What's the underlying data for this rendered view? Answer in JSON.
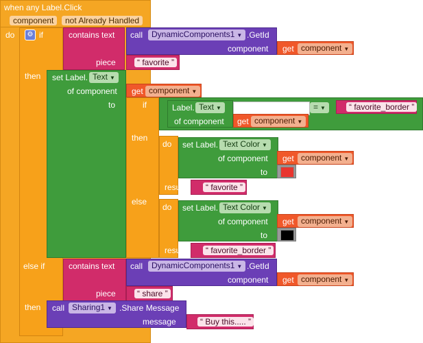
{
  "event": {
    "title": "when any Label.Click",
    "param1": "component",
    "param2": "not Already Handled",
    "do_label": "do"
  },
  "if_block": {
    "if_label": "if",
    "then_label": "then",
    "else_if_label": "else if",
    "then2_label": "then"
  },
  "contains1": {
    "label": "contains text",
    "piece_label": "piece",
    "piece_value": "favorite"
  },
  "call1": {
    "call_label": "call",
    "component": "DynamicComponents1",
    "method": ".GetId",
    "arg_label": "component",
    "get_label": "get",
    "get_value": "component"
  },
  "set_text": {
    "label": "set Label.",
    "prop": "Text",
    "of_component": "of component",
    "to_label": "to",
    "get_label": "get",
    "get_value": "component"
  },
  "inner_if": {
    "if_label": "if",
    "then_label": "then",
    "else_label": "else",
    "do_label": "do",
    "result_label": "result"
  },
  "label_text": {
    "label": "Label.",
    "prop": "Text",
    "of_component": "of component",
    "get_label": "get",
    "get_value": "component"
  },
  "compare": {
    "op": "=",
    "value": "favorite_border"
  },
  "set_color1": {
    "label": "set Label.",
    "prop": "Text Color",
    "of_component": "of component",
    "to_label": "to",
    "get_label": "get",
    "get_value": "component",
    "color": "#e8352f",
    "result": "favorite"
  },
  "set_color2": {
    "label": "set Label.",
    "prop": "Text Color",
    "of_component": "of component",
    "to_label": "to",
    "get_label": "get",
    "get_value": "component",
    "color": "#000000",
    "result": "favorite_border"
  },
  "contains2": {
    "label": "contains text",
    "piece_label": "piece",
    "piece_value": "share"
  },
  "call2": {
    "call_label": "call",
    "component": "DynamicComponents1",
    "method": ".GetId",
    "arg_label": "component",
    "get_label": "get",
    "get_value": "component"
  },
  "share": {
    "call_label": "call",
    "component": "Sharing1",
    "method": ".Share Message",
    "arg_label": "message",
    "value": "Buy this....."
  },
  "icons": {
    "gear": "gear-icon",
    "dropdown": "dropdown-arrow-icon"
  }
}
